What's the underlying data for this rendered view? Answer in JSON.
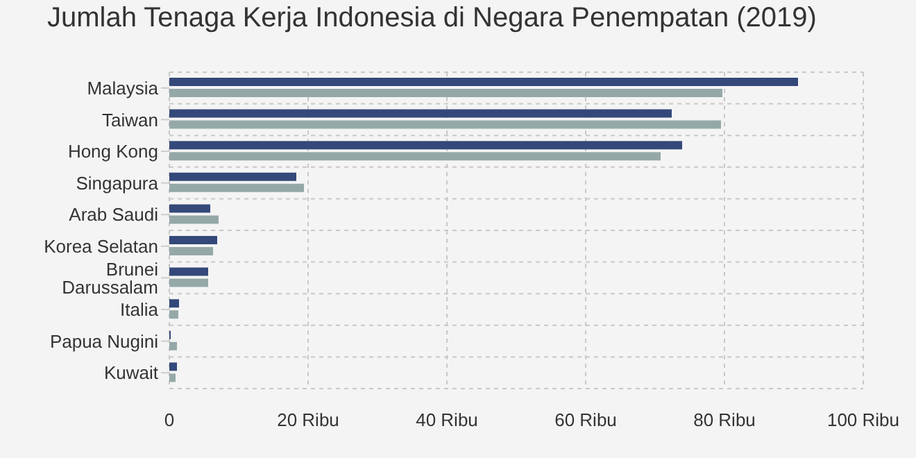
{
  "chart_data": {
    "type": "bar",
    "orientation": "horizontal",
    "title": "Jumlah Tenaga Kerja Indonesia di Negara Penempatan (2019)",
    "categories": [
      "Malaysia",
      "Taiwan",
      "Hong Kong",
      "Singapura",
      "Arab Saudi",
      "Korea Selatan",
      "Brunei Darussalam",
      "Italia",
      "Papua Nugini",
      "Kuwait"
    ],
    "series": [
      {
        "color": "#34497a",
        "values": [
          90.6,
          72.4,
          73.9,
          18.3,
          5.9,
          6.9,
          5.6,
          1.4,
          0.2,
          1.1
        ]
      },
      {
        "color": "#95a8a8",
        "values": [
          79.7,
          79.5,
          70.8,
          19.4,
          7.1,
          6.3,
          5.6,
          1.3,
          1.1,
          0.9
        ]
      }
    ],
    "xlim": [
      0,
      100
    ],
    "xticks": [
      0,
      {
        "value": 20,
        "label": "20 Ribu"
      },
      {
        "value": 40,
        "label": "40 Ribu"
      },
      {
        "value": 60,
        "label": "60 Ribu"
      },
      {
        "value": 80,
        "label": "80 Ribu"
      },
      {
        "value": 100,
        "label": "100 Ribu"
      }
    ],
    "grid": true
  }
}
